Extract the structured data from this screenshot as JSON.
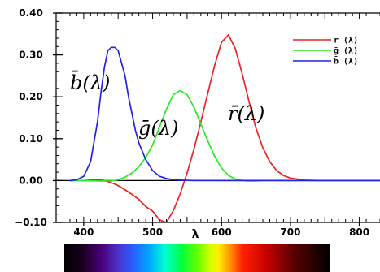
{
  "chart_data": {
    "type": "line",
    "xlabel": "λ",
    "ylabel": "",
    "title": "",
    "xlim": [
      360,
      830
    ],
    "ylim": [
      -0.1,
      0.4
    ],
    "x_ticks": [
      400,
      500,
      600,
      700,
      800
    ],
    "x_tick_labels": [
      "400",
      "500",
      "600",
      "700",
      "800"
    ],
    "y_ticks": [
      -0.1,
      0.0,
      0.1,
      0.2,
      0.3,
      0.4
    ],
    "y_tick_labels": [
      "−0.10",
      "0.00",
      "0.10",
      "0.20",
      "0.30",
      "0.40"
    ],
    "zero_line": true,
    "grid": false,
    "legend": {
      "position": "top-right",
      "entries": [
        "r̄ (λ)",
        "ḡ (λ)",
        "b̄ (λ)"
      ]
    },
    "series": [
      {
        "name": "r̄ (λ)",
        "color": "#ee2222",
        "curve_label": "r̄(λ)",
        "x": [
          380,
          400,
          420,
          430,
          440,
          450,
          460,
          470,
          480,
          490,
          500,
          510,
          520,
          530,
          540,
          550,
          560,
          570,
          580,
          590,
          600,
          610,
          620,
          630,
          640,
          650,
          660,
          670,
          680,
          690,
          700,
          720,
          740,
          780,
          830
        ],
        "values": [
          0.0,
          0.0,
          0.002,
          0.0,
          -0.005,
          -0.012,
          -0.022,
          -0.033,
          -0.045,
          -0.062,
          -0.073,
          -0.094,
          -0.1,
          -0.072,
          -0.032,
          0.018,
          0.075,
          0.14,
          0.208,
          0.275,
          0.33,
          0.348,
          0.315,
          0.255,
          0.188,
          0.125,
          0.078,
          0.045,
          0.024,
          0.012,
          0.006,
          0.001,
          0.0,
          0.0,
          0.0
        ]
      },
      {
        "name": "ḡ (λ)",
        "color": "#22ee22",
        "curve_label": "ḡ(λ)",
        "x": [
          380,
          400,
          420,
          440,
          450,
          460,
          470,
          480,
          490,
          500,
          510,
          520,
          530,
          540,
          550,
          560,
          570,
          580,
          590,
          600,
          610,
          620,
          630,
          640,
          650,
          660,
          680,
          700,
          830
        ],
        "values": [
          0.0,
          0.0,
          -0.001,
          -0.001,
          0.002,
          0.008,
          0.018,
          0.033,
          0.055,
          0.085,
          0.128,
          0.17,
          0.205,
          0.215,
          0.205,
          0.175,
          0.135,
          0.095,
          0.058,
          0.03,
          0.012,
          0.004,
          0.0,
          -0.001,
          -0.001,
          0.0,
          0.0,
          0.0,
          0.0
        ]
      },
      {
        "name": "b̄ (λ)",
        "color": "#2222ee",
        "curve_label": "b̄(λ)",
        "x": [
          380,
          390,
          400,
          410,
          420,
          425,
          430,
          435,
          440,
          445,
          450,
          455,
          460,
          465,
          470,
          475,
          480,
          490,
          500,
          510,
          520,
          530,
          540,
          560,
          580,
          830
        ],
        "values": [
          0.0,
          0.002,
          0.01,
          0.045,
          0.14,
          0.21,
          0.27,
          0.31,
          0.318,
          0.318,
          0.31,
          0.28,
          0.25,
          0.2,
          0.16,
          0.12,
          0.09,
          0.05,
          0.024,
          0.01,
          0.005,
          0.002,
          0.001,
          0.0,
          0.0,
          0.0
        ]
      }
    ]
  },
  "spectrum_bar": {
    "stops": [
      {
        "offset": 0.0,
        "color": "#000000"
      },
      {
        "offset": 0.07,
        "color": "#1a0020"
      },
      {
        "offset": 0.14,
        "color": "#4a007a"
      },
      {
        "offset": 0.2,
        "color": "#4e2fc8"
      },
      {
        "offset": 0.26,
        "color": "#2860ff"
      },
      {
        "offset": 0.32,
        "color": "#00a8ff"
      },
      {
        "offset": 0.38,
        "color": "#00ffd0"
      },
      {
        "offset": 0.44,
        "color": "#00ff40"
      },
      {
        "offset": 0.5,
        "color": "#60ff00"
      },
      {
        "offset": 0.55,
        "color": "#d8ff00"
      },
      {
        "offset": 0.58,
        "color": "#ffee00"
      },
      {
        "offset": 0.62,
        "color": "#ff9900"
      },
      {
        "offset": 0.67,
        "color": "#ff2200"
      },
      {
        "offset": 0.76,
        "color": "#c80000"
      },
      {
        "offset": 0.86,
        "color": "#5a0000"
      },
      {
        "offset": 1.0,
        "color": "#000000"
      }
    ]
  }
}
